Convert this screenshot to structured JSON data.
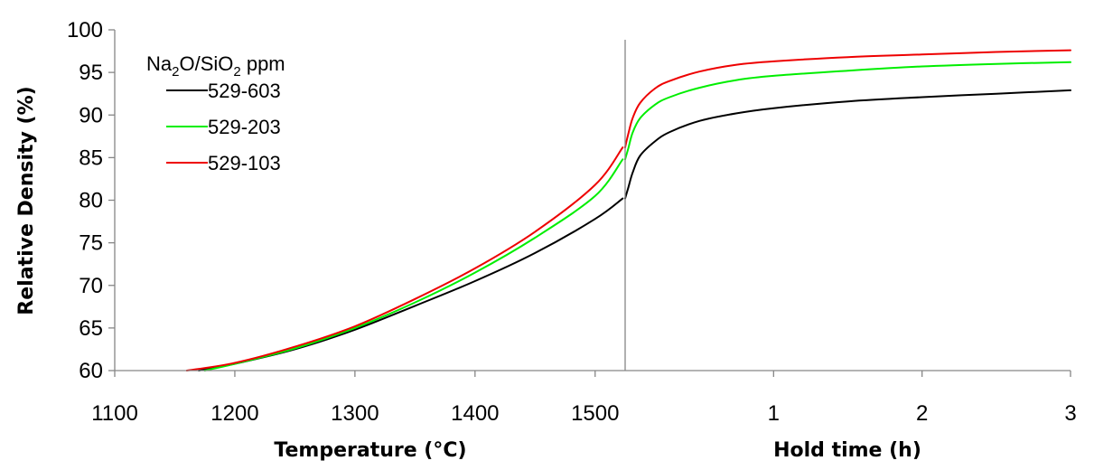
{
  "chart_data": {
    "type": "line",
    "ylabel": "Relative Density (%)",
    "ylim": [
      60,
      100
    ],
    "yticks": [
      "60",
      "65",
      "70",
      "75",
      "80",
      "85",
      "90",
      "95",
      "100"
    ],
    "panels": [
      {
        "xlabel": "Temperature (°C)",
        "xlim": [
          1100,
          1525
        ],
        "xticks": [
          "1100",
          "1200",
          "1300",
          "1400",
          "1500"
        ]
      },
      {
        "xlabel": "Hold time (h)",
        "xlim": [
          0,
          3
        ],
        "xticks": [
          "1",
          "2",
          "3"
        ]
      }
    ],
    "legend": {
      "title_main": "Na",
      "title_sub1": "2",
      "title_mid": "O/SiO",
      "title_sub2": "2",
      "title_tail": " ppm",
      "placement": "top-left"
    },
    "series": [
      {
        "name": "529-603",
        "color": "#000000",
        "heating": {
          "x": [
            1170,
            1200,
            1250,
            1300,
            1350,
            1400,
            1450,
            1500,
            1523
          ],
          "y": [
            60,
            60.8,
            62.5,
            64.8,
            67.6,
            70.5,
            73.8,
            77.8,
            80.2
          ]
        },
        "hold": {
          "x": [
            0,
            0.02,
            0.05,
            0.1,
            0.2,
            0.3,
            0.5,
            0.75,
            1.0,
            1.5,
            2.0,
            2.5,
            3.0
          ],
          "y": [
            80.2,
            81.4,
            83.2,
            85.2,
            86.9,
            88.0,
            89.3,
            90.2,
            90.8,
            91.6,
            92.1,
            92.5,
            92.9
          ]
        }
      },
      {
        "name": "529-203",
        "color": "#00ee00",
        "heating": {
          "x": [
            1175,
            1200,
            1250,
            1300,
            1350,
            1400,
            1450,
            1500,
            1523
          ],
          "y": [
            60,
            60.8,
            62.6,
            65.0,
            68.0,
            71.5,
            75.6,
            80.5,
            84.8
          ]
        },
        "hold": {
          "x": [
            0,
            0.02,
            0.05,
            0.1,
            0.2,
            0.3,
            0.5,
            0.75,
            1.0,
            1.5,
            2.0,
            2.5,
            3.0
          ],
          "y": [
            84.8,
            86.0,
            87.9,
            89.6,
            91.2,
            92.1,
            93.2,
            94.1,
            94.6,
            95.2,
            95.7,
            96.0,
            96.2
          ]
        }
      },
      {
        "name": "529-103",
        "color": "#ee0000",
        "heating": {
          "x": [
            1160,
            1200,
            1250,
            1300,
            1350,
            1400,
            1450,
            1500,
            1523
          ],
          "y": [
            60,
            60.9,
            62.8,
            65.2,
            68.4,
            72.0,
            76.3,
            81.8,
            86.2
          ]
        },
        "hold": {
          "x": [
            0,
            0.02,
            0.05,
            0.1,
            0.2,
            0.3,
            0.5,
            0.75,
            1.0,
            1.5,
            2.0,
            2.5,
            3.0
          ],
          "y": [
            86.2,
            87.7,
            89.6,
            91.4,
            93.1,
            94.0,
            95.1,
            95.9,
            96.3,
            96.8,
            97.1,
            97.4,
            97.6
          ]
        }
      }
    ]
  }
}
